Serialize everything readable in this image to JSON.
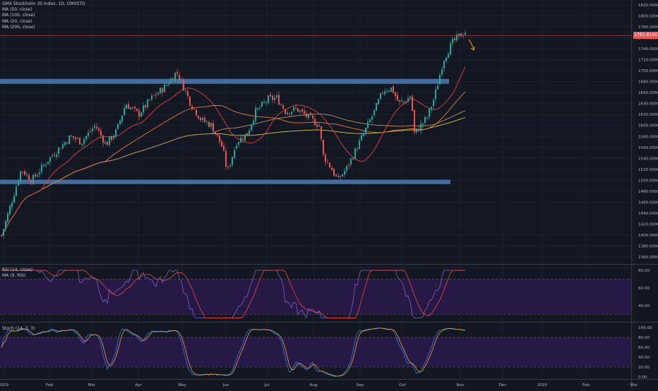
{
  "symbol": {
    "title": "OMX Stockholm 30 Index, 1D, OMXSTO"
  },
  "price_pane": {
    "indicators": [
      "MA (50, close)",
      "MA (100, close)",
      "MA (20, close)",
      "MA (200, close)"
    ],
    "axis_labels": [
      "1820.0000",
      "1800.0000",
      "1780.0000",
      "1760.0000",
      "1740.0000",
      "1720.0000",
      "1700.0000",
      "1680.0000",
      "1660.0000",
      "1640.0000",
      "1620.0000",
      "1600.0000",
      "1580.0000",
      "1560.0000",
      "1540.0000",
      "1520.0000",
      "1500.0000",
      "1480.0000",
      "1460.0000",
      "1440.0000",
      "1420.0000",
      "1400.0000",
      "1380.0000",
      "1360.0000",
      "1340.0000"
    ],
    "last_price": "1763.8100",
    "support_resistance_zones": [
      {
        "value": 1682,
        "label": "resistance-zone"
      },
      {
        "value": 1498,
        "label": "support-zone"
      }
    ]
  },
  "rsi_pane": {
    "legend": [
      "RSI (14, close)",
      "MA (9, RSI)"
    ],
    "axis_labels": [
      "80.00",
      "60.00",
      "40.00"
    ]
  },
  "stoch_pane": {
    "legend": "Stoch (14, 3, 3)",
    "axis_labels": [
      "100.00",
      "80.00",
      "60.00",
      "40.00",
      "20.00",
      "0.00"
    ]
  },
  "time_axis": {
    "labels": [
      "2019",
      "Feb",
      "Mar",
      "Apr",
      "May",
      "Jun",
      "Jul",
      "Aug",
      "Sep",
      "Oct",
      "Nov",
      "Dec",
      "2020",
      "Feb",
      "Mar"
    ]
  },
  "colors": {
    "background": "#131722",
    "up_candle": "#26a69a",
    "down_candle": "#ef5350",
    "zone": "#4d7db3",
    "ma20": "#e0433c",
    "ma50": "#e8793a",
    "ma100": "#b98b5f",
    "ma200": "#d8c447",
    "rsi_line": "#8a5cc7",
    "rsi_ma": "#e0433c",
    "stoch_k": "#2f7de0",
    "stoch_d": "#f0a040",
    "band_fill": "#2a1a4a",
    "arrow": "#ff9800"
  },
  "chart_data": {
    "type": "candlestick",
    "title": "OMX Stockholm 30 Index, 1D, OMXSTO",
    "y_range": [
      1340,
      1830
    ],
    "x_range": [
      "2019-01-01",
      "2020-03-31"
    ],
    "key_points": [
      {
        "date": "2019-01-02",
        "close": 1390
      },
      {
        "date": "2019-02-01",
        "close": 1530
      },
      {
        "date": "2019-03-01",
        "close": 1590
      },
      {
        "date": "2019-03-15",
        "close": 1560
      },
      {
        "date": "2019-04-01",
        "close": 1640
      },
      {
        "date": "2019-04-24",
        "close": 1695
      },
      {
        "date": "2019-05-13",
        "close": 1610
      },
      {
        "date": "2019-06-03",
        "close": 1510
      },
      {
        "date": "2019-07-01",
        "close": 1650
      },
      {
        "date": "2019-07-22",
        "close": 1625
      },
      {
        "date": "2019-08-06",
        "close": 1505
      },
      {
        "date": "2019-08-26",
        "close": 1525
      },
      {
        "date": "2019-09-12",
        "close": 1665
      },
      {
        "date": "2019-10-03",
        "close": 1580
      },
      {
        "date": "2019-10-15",
        "close": 1650
      },
      {
        "date": "2019-11-04",
        "close": 1775
      },
      {
        "date": "2019-11-08",
        "close": 1764
      }
    ],
    "rsi_range": [
      25,
      80
    ],
    "stoch_range": [
      0,
      100
    ]
  }
}
